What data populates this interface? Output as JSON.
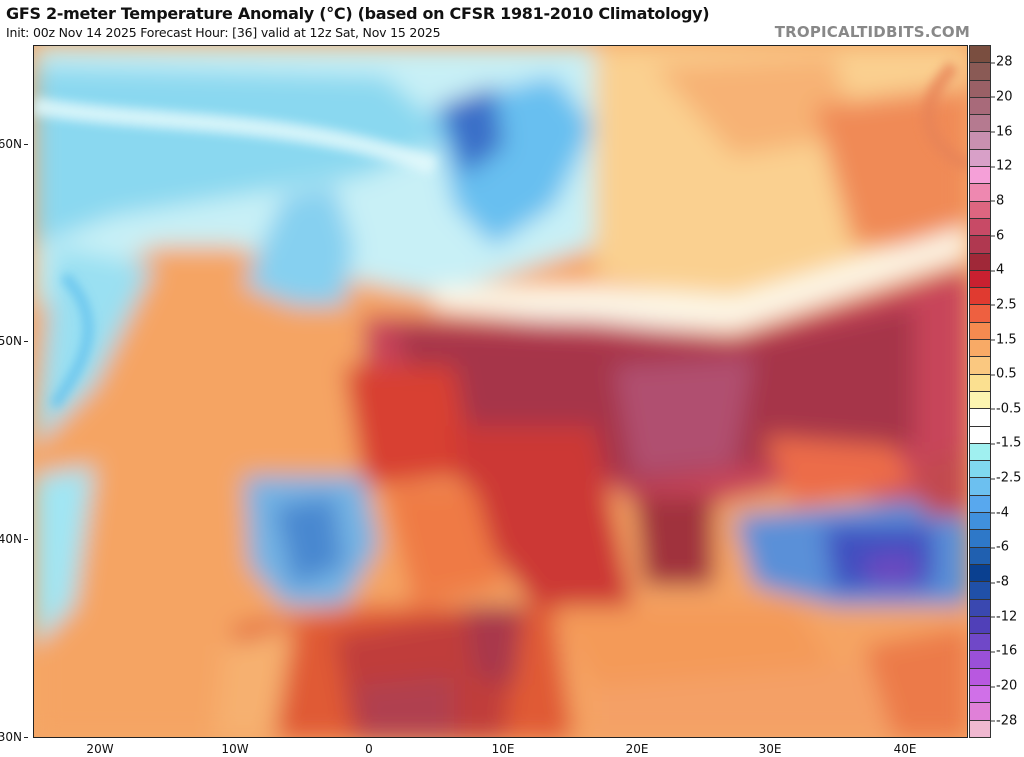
{
  "header": {
    "title": "GFS 2-meter Temperature Anomaly (°C) (based on CFSR 1981-2010 Climatology)",
    "subtitle": "Init: 00z Nov 14 2025   Forecast Hour: [36]   valid at 12z Sat, Nov 15 2025",
    "brand": "TROPICALTIDBITS.COM"
  },
  "axes": {
    "lat_labels": [
      "60N",
      "50N",
      "40N",
      "30N"
    ],
    "lon_labels": [
      "20W",
      "10W",
      "0",
      "10E",
      "20E",
      "30E",
      "40E"
    ]
  },
  "colorbar": {
    "labels": [
      "28",
      "20",
      "16",
      "12",
      "8",
      "6",
      "4",
      "2.5",
      "1.5",
      "0.5",
      "-0.5",
      "-1.5",
      "-2.5",
      "-4",
      "-6",
      "-8",
      "-12",
      "-16",
      "-20",
      "-28"
    ],
    "colors": [
      "#7a4e40",
      "#8a5a55",
      "#9a6066",
      "#a86a7a",
      "#b57a90",
      "#c890b0",
      "#d8a0c8",
      "#f5a0d8",
      "#ee88b0",
      "#dd6680",
      "#c84a66",
      "#b03850",
      "#a02838",
      "#c82030",
      "#e03a30",
      "#ee6040",
      "#f58a50",
      "#f8aa66",
      "#fac880",
      "#fbe090",
      "#fcf4b0",
      "#ffffff",
      "#ffffff",
      "#a0f0f0",
      "#80d8f0",
      "#6cc0f0",
      "#58a8ee",
      "#4090dd",
      "#2e78c8",
      "#2060b0",
      "#0a4090",
      "#2050a8",
      "#3a48b0",
      "#5040b8",
      "#7048c8",
      "#9a50d8",
      "#b858e0",
      "#d070e8",
      "#e080d8",
      "#f0b8d0"
    ]
  }
}
